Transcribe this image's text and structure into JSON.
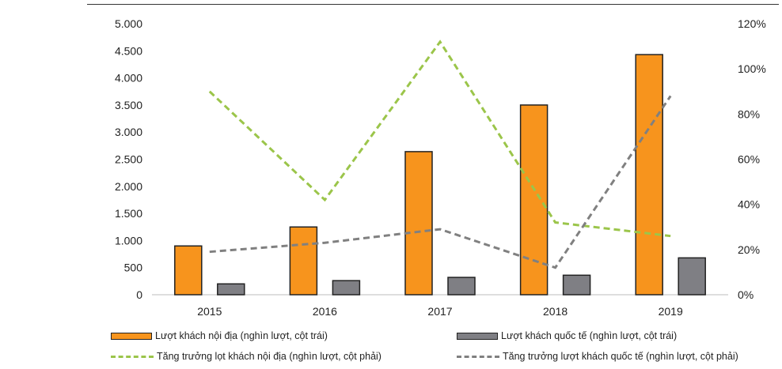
{
  "chart_data": {
    "type": "bar",
    "categories": [
      "2015",
      "2016",
      "2017",
      "2018",
      "2019"
    ],
    "y_left": {
      "range": [
        0,
        5000
      ],
      "ticks": [
        0,
        500,
        1000,
        1500,
        2000,
        2500,
        3000,
        3500,
        4000,
        4500,
        5000
      ],
      "tick_labels": [
        "0",
        "500",
        "1.000",
        "1.500",
        "2.000",
        "2.500",
        "3.000",
        "3.500",
        "4.000",
        "4.500",
        "5.000"
      ]
    },
    "y_right": {
      "range": [
        0,
        120
      ],
      "ticks": [
        0,
        20,
        40,
        60,
        80,
        100,
        120
      ],
      "tick_labels": [
        "0%",
        "20%",
        "40%",
        "60%",
        "80%",
        "100%",
        "120%"
      ]
    },
    "grid": false,
    "legend_position": "bottom",
    "series": [
      {
        "name": "Lượt khách nội địa (nghìn lượt, cột trái)",
        "kind": "bar",
        "axis": "left",
        "color": "#F7941D",
        "values": [
          900,
          1250,
          2640,
          3500,
          4430
        ]
      },
      {
        "name": "Lượt khách quốc tế (nghìn lượt, cột trái)",
        "kind": "bar",
        "axis": "left",
        "color": "#7F7F84",
        "values": [
          200,
          260,
          320,
          360,
          680
        ]
      },
      {
        "name": "Tăng trưởng lọt khách nội địa (nghìn lượt, cột phải)",
        "kind": "line",
        "axis": "right",
        "color": "#9BC54A",
        "values": [
          90,
          42,
          112,
          32,
          26
        ]
      },
      {
        "name": "Tăng trưởng lượt khách quốc tế (nghìn lượt, cột phải)",
        "kind": "line",
        "axis": "right",
        "color": "#808080",
        "values": [
          19,
          23,
          29,
          12,
          88
        ]
      }
    ]
  }
}
